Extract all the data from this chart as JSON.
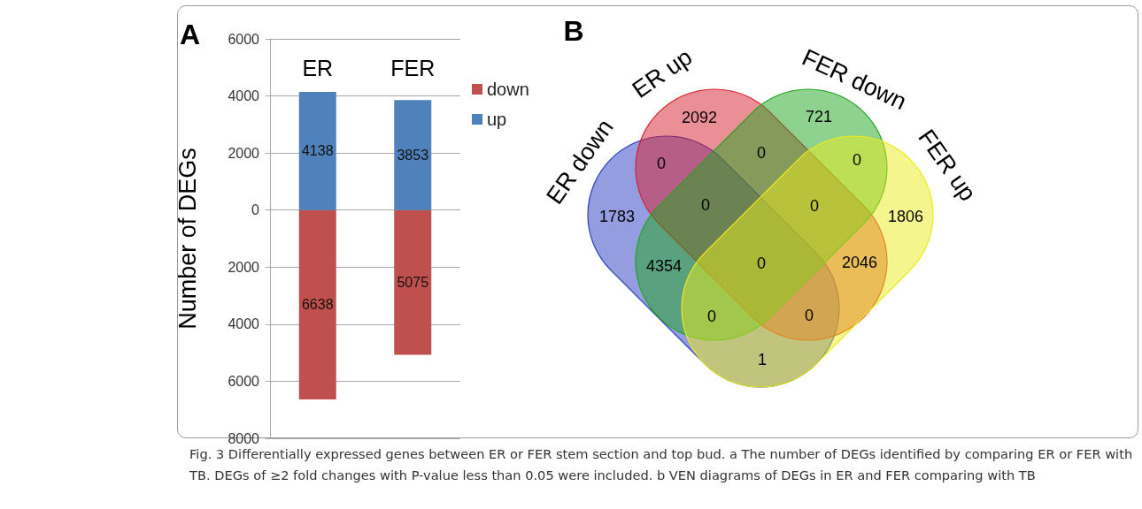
{
  "chart_data": [
    {
      "type": "bar",
      "title": "A",
      "ylabel": "Number of DEGs",
      "categories": [
        "ER",
        "FER"
      ],
      "series": [
        {
          "name": "down",
          "color": "#c0504d",
          "base": [
            -6638,
            -5075
          ],
          "values": [
            6638,
            5075
          ]
        },
        {
          "name": "up",
          "color": "#4f81bd",
          "values": [
            4138,
            3853
          ]
        }
      ],
      "data_labels": true,
      "ylim": [
        -8000,
        6000
      ],
      "yticks": [
        {
          "value": -8000,
          "label": "8000"
        },
        {
          "value": -6000,
          "label": "6000"
        },
        {
          "value": -4000,
          "label": "4000"
        },
        {
          "value": -2000,
          "label": "2000"
        },
        0,
        2000,
        4000,
        6000
      ],
      "grid": "y",
      "legend": "right",
      "annotations": [
        "Fig. 3 Differentially expressed genes between ER or FER stem section and top bud. a The number of DEGs identified by comparing ER or FER with TB. DEGs of ≥2 fold changes with P-value less than 0.05 were included. b VEN diagrams of DEGs in ER and FER comparing with TB"
      ]
    },
    {
      "type": "other",
      "title": "B",
      "categories": [
        "ER down",
        "ER up",
        "FER down",
        "FER up"
      ],
      "colors": [
        "#2a3cc0",
        "#d8202e",
        "#1fa51f",
        "#ecec1c"
      ],
      "annotations": [
        "2092",
        "721",
        "0",
        "0",
        "0",
        "1783",
        "0",
        "0",
        "1806",
        "4354",
        "0",
        "2046",
        "0",
        "0",
        "1"
      ]
    }
  ]
}
